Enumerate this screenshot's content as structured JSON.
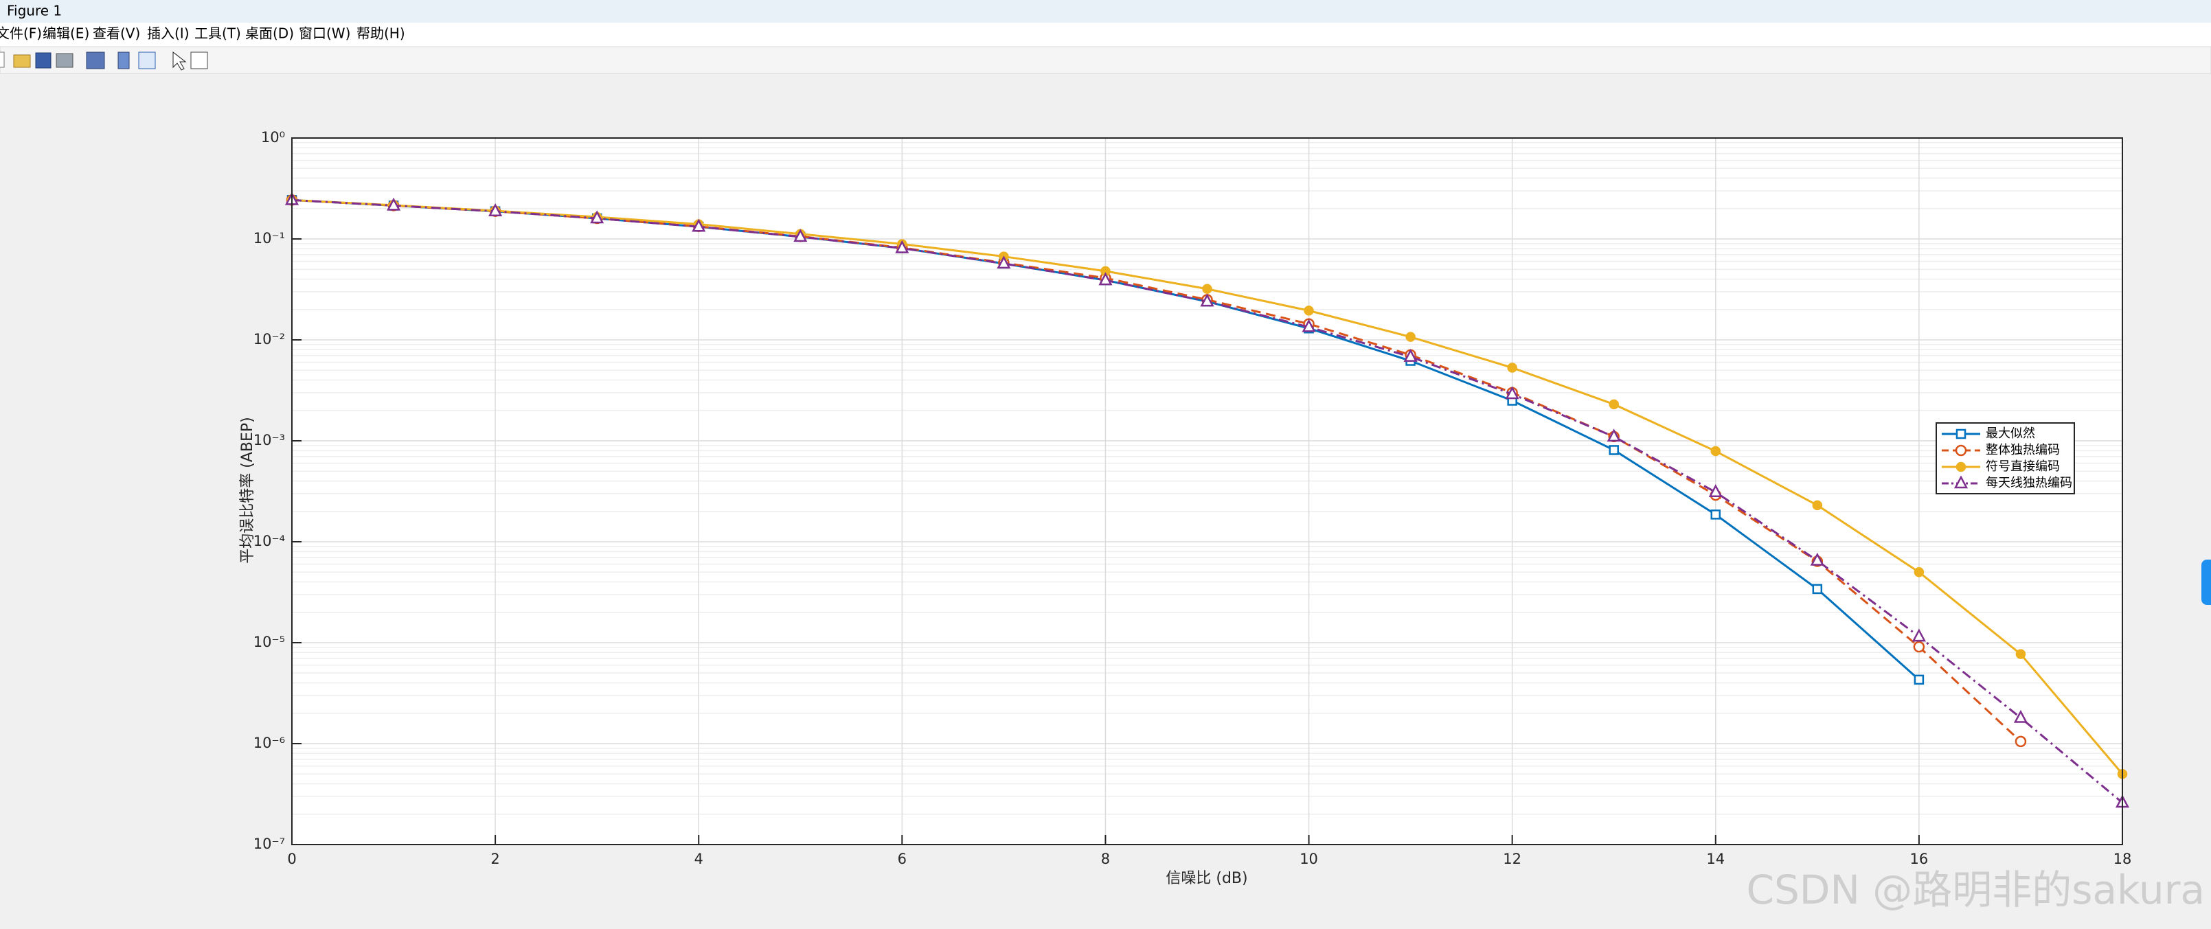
{
  "window": {
    "title": "Figure 1",
    "menu": [
      "文件(F)",
      "编辑(E)",
      "查看(V)",
      "插入(I)",
      "工具(T)",
      "桌面(D)",
      "窗口(W)",
      "帮助(H)"
    ],
    "watermark": "CSDN @路明非的sakura"
  },
  "chart_data": {
    "type": "line",
    "x_label": "信噪比 (dB)",
    "y_label": "平均误比特率 (ABEP)",
    "xlim": [
      0,
      18
    ],
    "xticks": [
      0,
      2,
      4,
      6,
      8,
      10,
      12,
      14,
      16,
      18
    ],
    "ylim": [
      1e-07,
      1
    ],
    "y_scale": "log",
    "yticks": [
      {
        "value": 1e-07,
        "label": "10⁻⁷"
      },
      {
        "value": 1e-06,
        "label": "10⁻⁶"
      },
      {
        "value": 1e-05,
        "label": "10⁻⁵"
      },
      {
        "value": 0.0001,
        "label": "10⁻⁴"
      },
      {
        "value": 0.001,
        "label": "10⁻³"
      },
      {
        "value": 0.01,
        "label": "10⁻²"
      },
      {
        "value": 0.1,
        "label": "10⁻¹"
      },
      {
        "value": 1,
        "label": "10⁰"
      }
    ],
    "grid": true,
    "legend": "east",
    "series": [
      {
        "name": "最大似然",
        "color": "#0072bd",
        "marker": "square",
        "line_style": "solid",
        "x": [
          0,
          1,
          2,
          3,
          4,
          5,
          6,
          7,
          8,
          9,
          10,
          11,
          12,
          13,
          14,
          15,
          16
        ],
        "values": [
          0.243,
          0.214,
          0.188,
          0.16,
          0.132,
          0.105,
          0.081,
          0.057,
          0.039,
          0.024,
          0.013,
          0.0062,
          0.0025,
          0.00081,
          0.000186,
          3.4e-05,
          4.3e-06
        ]
      },
      {
        "name": "整体独热编码",
        "color": "#d95319",
        "marker": "circle",
        "line_style": "dashed",
        "x": [
          0,
          1,
          2,
          3,
          4,
          5,
          6,
          7,
          8,
          9,
          10,
          11,
          12,
          13,
          14,
          15,
          16,
          17
        ],
        "values": [
          0.243,
          0.214,
          0.188,
          0.16,
          0.133,
          0.106,
          0.082,
          0.058,
          0.041,
          0.025,
          0.0144,
          0.0071,
          0.003,
          0.0011,
          0.00029,
          6.4e-05,
          9.1e-06,
          1.05e-06
        ]
      },
      {
        "name": "符号直接编码",
        "color": "#edb120",
        "marker": "filled-circle",
        "line_style": "solid",
        "x": [
          0,
          1,
          2,
          3,
          4,
          5,
          6,
          7,
          8,
          9,
          10,
          11,
          12,
          13,
          14,
          15,
          16,
          17,
          18
        ],
        "values": [
          0.243,
          0.216,
          0.19,
          0.165,
          0.14,
          0.112,
          0.089,
          0.067,
          0.048,
          0.032,
          0.0195,
          0.0107,
          0.0053,
          0.0023,
          0.00079,
          0.00023,
          5e-05,
          7.7e-06,
          5e-07
        ]
      },
      {
        "name": "每天线独热编码",
        "color": "#7e2f8e",
        "marker": "triangle",
        "line_style": "dashdot",
        "x": [
          0,
          1,
          2,
          3,
          4,
          5,
          6,
          7,
          8,
          9,
          10,
          11,
          12,
          13,
          14,
          15,
          16,
          17,
          18
        ],
        "values": [
          0.243,
          0.214,
          0.188,
          0.16,
          0.132,
          0.105,
          0.081,
          0.057,
          0.039,
          0.024,
          0.0134,
          0.0068,
          0.0029,
          0.0011,
          0.00031,
          6.5e-05,
          1.15e-05,
          1.8e-06,
          2.6e-07
        ]
      }
    ]
  }
}
